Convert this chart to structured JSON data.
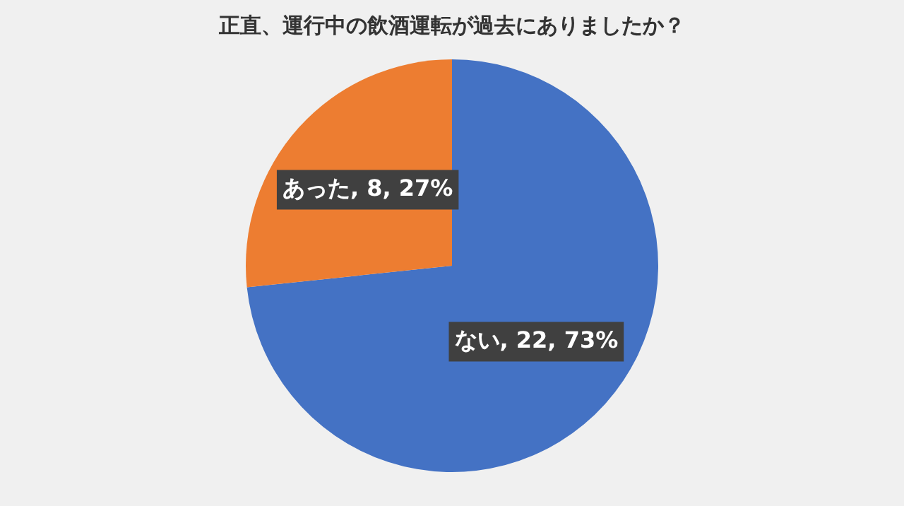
{
  "chart_data": {
    "type": "pie",
    "title": "正直、運行中の飲酒運転が過去にありましたか？",
    "categories": [
      "ない",
      "あった"
    ],
    "values": [
      22,
      8
    ],
    "colors": [
      "#4472c4",
      "#ed7d31"
    ],
    "value_labels": [
      "22, 73%",
      "8, 27%"
    ],
    "legend": false
  }
}
